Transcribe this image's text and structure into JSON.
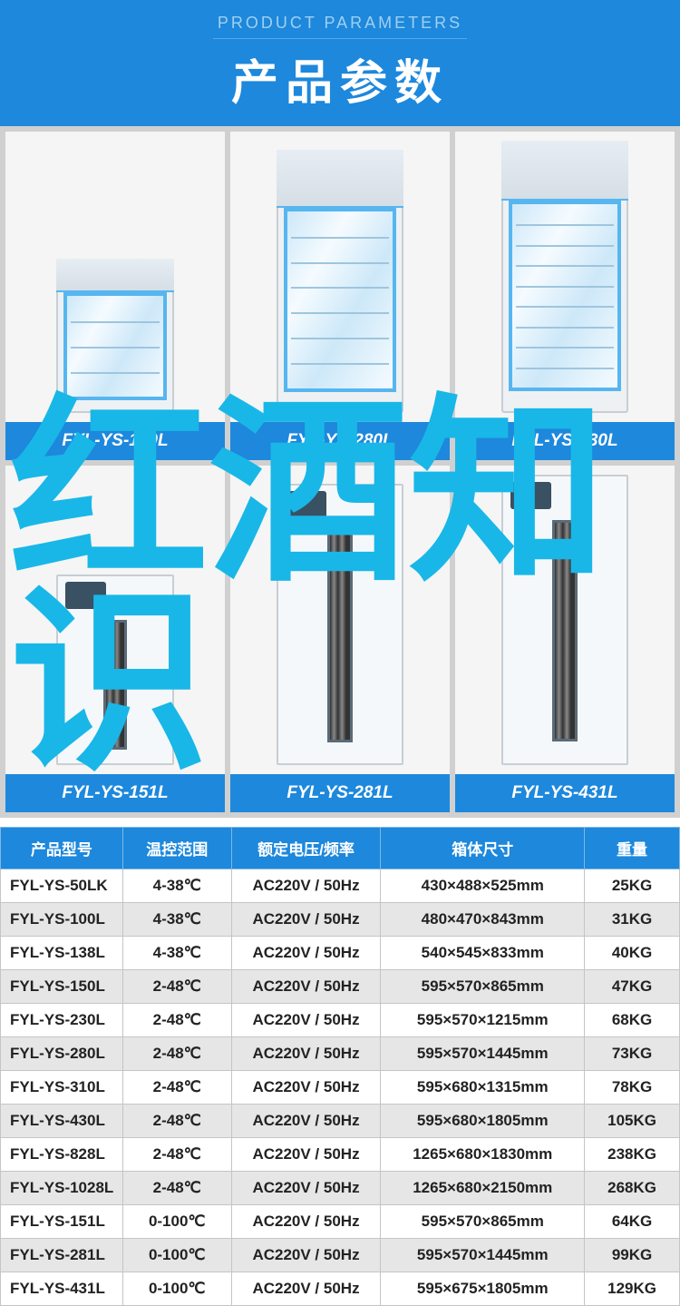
{
  "header": {
    "english": "PRODUCT PARAMETERS",
    "chinese": "产品参数"
  },
  "overlay_text": "红酒知识",
  "products": [
    {
      "label": "FYL-YS-150L",
      "size": "small",
      "shelves": 3
    },
    {
      "label": "FYL-YS-280L",
      "size": "med",
      "shelves": 6
    },
    {
      "label": "FYL-YS-430L",
      "size": "big",
      "shelves": 8
    },
    {
      "label": "FYL-YS-151L",
      "size": "heater-s",
      "shelves": 0
    },
    {
      "label": "FYL-YS-281L",
      "size": "heater-m",
      "shelves": 0
    },
    {
      "label": "FYL-YS-431L",
      "size": "heater-l",
      "shelves": 0
    }
  ],
  "table": {
    "columns": [
      "产品型号",
      "温控范围",
      "额定电压/频率",
      "箱体尺寸",
      "重量"
    ],
    "rows": [
      [
        "FYL-YS-50LK",
        "4-38℃",
        "AC220V / 50Hz",
        "430×488×525mm",
        "25KG"
      ],
      [
        "FYL-YS-100L",
        "4-38℃",
        "AC220V / 50Hz",
        "480×470×843mm",
        "31KG"
      ],
      [
        "FYL-YS-138L",
        "4-38℃",
        "AC220V / 50Hz",
        "540×545×833mm",
        "40KG"
      ],
      [
        "FYL-YS-150L",
        "2-48℃",
        "AC220V / 50Hz",
        "595×570×865mm",
        "47KG"
      ],
      [
        "FYL-YS-230L",
        "2-48℃",
        "AC220V / 50Hz",
        "595×570×1215mm",
        "68KG"
      ],
      [
        "FYL-YS-280L",
        "2-48℃",
        "AC220V / 50Hz",
        "595×570×1445mm",
        "73KG"
      ],
      [
        "FYL-YS-310L",
        "2-48℃",
        "AC220V / 50Hz",
        "595×680×1315mm",
        "78KG"
      ],
      [
        "FYL-YS-430L",
        "2-48℃",
        "AC220V / 50Hz",
        "595×680×1805mm",
        "105KG"
      ],
      [
        "FYL-YS-828L",
        "2-48℃",
        "AC220V / 50Hz",
        "1265×680×1830mm",
        "238KG"
      ],
      [
        "FYL-YS-1028L",
        "2-48℃",
        "AC220V / 50Hz",
        "1265×680×2150mm",
        "268KG"
      ],
      [
        "FYL-YS-151L",
        "0-100℃",
        "AC220V / 50Hz",
        "595×570×865mm",
        "64KG"
      ],
      [
        "FYL-YS-281L",
        "0-100℃",
        "AC220V / 50Hz",
        "595×570×1445mm",
        "99KG"
      ],
      [
        "FYL-YS-431L",
        "0-100℃",
        "AC220V / 50Hz",
        "595×675×1805mm",
        "129KG"
      ]
    ],
    "col_widths": [
      "18%",
      "16%",
      "22%",
      "30%",
      "14%"
    ]
  },
  "colors": {
    "brand_blue": "#1d88dc",
    "overlay_cyan": "#18b7e8",
    "row_alt": "#e6e6e6",
    "border": "#c5c5c5"
  }
}
